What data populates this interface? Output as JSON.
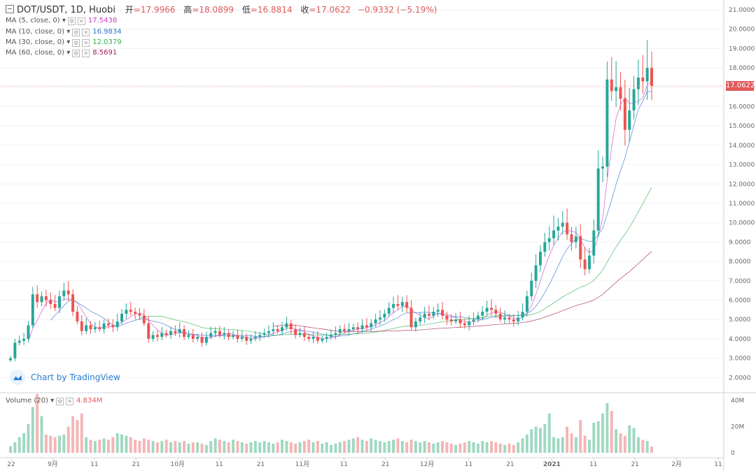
{
  "header": {
    "symbol": "DOT/USDT, 1D, Huobi",
    "open_label": "开",
    "open": "=17.9966",
    "high_label": "高",
    "high": "=18.0899",
    "low_label": "低",
    "low": "=16.8814",
    "close_label": "收",
    "close": "=17.0622",
    "change": "−0.9332 (−5.19%)"
  },
  "indicators": [
    {
      "label": "MA (5, close, 0)",
      "value": "17.5438",
      "color": "#c842c8"
    },
    {
      "label": "MA (10, close, 0)",
      "value": "16.9834",
      "color": "#2f6fd0"
    },
    {
      "label": "MA (30, close, 0)",
      "value": "12.0379",
      "color": "#2fb24a"
    },
    {
      "label": "MA (60, close, 0)",
      "value": "8.5691",
      "color": "#a0205a"
    }
  ],
  "volume": {
    "label": "Volume (20)",
    "value": "4.834M"
  },
  "watermark": "Chart by TradingView",
  "price_tag": "17.0622",
  "colors": {
    "up": "#26a69a",
    "down": "#ef5350",
    "up_vol": "#9fd8c2",
    "down_vol": "#f5b5b5"
  },
  "chart_data": {
    "type": "candlestick",
    "y_axis_labels": [
      "21.0000",
      "20.0000",
      "19.0000",
      "18.0000",
      "17.0000",
      "16.0000",
      "15.0000",
      "14.0000",
      "13.0000",
      "12.0000",
      "11.0000",
      "10.0000",
      "9.0000",
      "8.0000",
      "7.0000",
      "6.0000",
      "5.0000",
      "4.0000",
      "3.0000",
      "2.0000"
    ],
    "volume_axis_labels": [
      "40M",
      "20M",
      "0"
    ],
    "x_axis_labels": [
      "22",
      "9月",
      "11",
      "21",
      "10月",
      "11",
      "21",
      "11月",
      "11",
      "21",
      "12月",
      "11",
      "21",
      "2021",
      "11",
      "21",
      "2月",
      "11"
    ],
    "closes": [
      3.0,
      3.8,
      3.9,
      4.0,
      4.7,
      6.3,
      5.9,
      6.2,
      6.0,
      5.8,
      5.6,
      6.2,
      6.5,
      6.3,
      5.4,
      4.9,
      4.4,
      4.7,
      4.5,
      4.6,
      4.5,
      4.8,
      4.7,
      4.6,
      4.9,
      5.3,
      5.5,
      5.4,
      5.3,
      5.2,
      4.8,
      4.0,
      4.2,
      4.1,
      4.3,
      4.2,
      4.4,
      4.3,
      4.5,
      4.1,
      4.2,
      4.0,
      4.1,
      3.8,
      4.1,
      4.3,
      4.4,
      4.2,
      4.3,
      4.1,
      4.2,
      4.0,
      4.1,
      3.9,
      4.0,
      4.1,
      4.2,
      4.3,
      4.4,
      4.5,
      4.4,
      4.6,
      4.8,
      4.5,
      4.2,
      4.3,
      4.1,
      4.0,
      4.1,
      3.9,
      4.0,
      4.1,
      4.2,
      4.3,
      4.5,
      4.4,
      4.5,
      4.6,
      4.5,
      4.7,
      4.6,
      4.8,
      5.0,
      5.1,
      5.3,
      5.6,
      5.8,
      5.7,
      5.9,
      5.6,
      4.6,
      4.9,
      5.1,
      5.3,
      5.2,
      5.4,
      5.5,
      5.2,
      5.0,
      4.9,
      5.0,
      4.8,
      4.7,
      4.9,
      5.0,
      5.2,
      5.4,
      5.6,
      5.5,
      5.3,
      5.0,
      5.1,
      5.0,
      4.9,
      5.1,
      5.4,
      6.2,
      7.0,
      7.8,
      8.5,
      9.0,
      9.2,
      9.6,
      9.8,
      10.0,
      9.4,
      9.0,
      9.3,
      8.1,
      7.6,
      8.3,
      9.6,
      12.8,
      12.9,
      17.4,
      16.8,
      17.0,
      16.4,
      14.8,
      15.8,
      16.9,
      17.5,
      17.3,
      18.0,
      17.06
    ],
    "volumes": [
      5,
      8,
      12,
      15,
      22,
      35,
      45,
      28,
      14,
      13,
      12,
      13,
      14,
      20,
      28,
      25,
      30,
      12,
      10,
      9,
      10,
      11,
      10,
      12,
      15,
      14,
      13,
      12,
      10,
      9,
      11,
      10,
      9,
      8,
      9,
      10,
      8,
      9,
      8,
      9,
      7,
      8,
      8,
      7,
      6,
      9,
      11,
      10,
      9,
      8,
      10,
      9,
      8,
      7,
      8,
      9,
      8,
      9,
      8,
      7,
      8,
      10,
      9,
      8,
      7,
      8,
      9,
      10,
      8,
      9,
      7,
      8,
      6,
      7,
      8,
      9,
      10,
      11,
      12,
      10,
      9,
      11,
      10,
      9,
      8,
      9,
      10,
      11,
      9,
      8,
      10,
      9,
      8,
      9,
      8,
      7,
      8,
      9,
      8,
      7,
      6,
      7,
      8,
      9,
      8,
      7,
      9,
      8,
      9,
      8,
      7,
      6,
      7,
      6,
      8,
      11,
      14,
      18,
      20,
      19,
      22,
      30,
      12,
      11,
      12,
      20,
      15,
      12,
      25,
      13,
      10,
      23,
      24,
      30,
      38,
      32,
      18,
      15,
      13,
      21,
      19,
      12,
      10,
      9,
      4.8
    ]
  }
}
